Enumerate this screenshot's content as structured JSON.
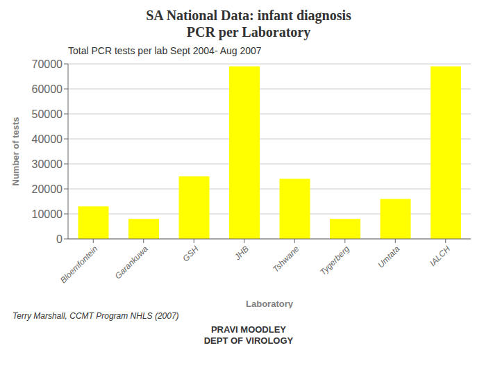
{
  "chart_data": {
    "type": "bar",
    "title": "SA National Data: infant diagnosis\nPCR per Laboratory",
    "subtitle": "Total PCR tests per lab Sept 2004- Aug 2007",
    "xlabel": "Laboratory",
    "ylabel": "Number of tests",
    "categories": [
      "Bloemfontein",
      "Garankuwa",
      "GSH",
      "JHB",
      "Tshwane",
      "Tygerberg",
      "Umtata",
      "IALCH"
    ],
    "values": [
      13000,
      8000,
      25000,
      69000,
      24000,
      8000,
      16000,
      69000
    ],
    "color": "#FFFF00",
    "ylim": [
      0,
      70000
    ],
    "yticks": [
      0,
      10000,
      20000,
      30000,
      40000,
      50000,
      60000,
      70000
    ],
    "grid": true,
    "annotations": [
      "Terry Marshall, CCMT Program NHLS (2007)",
      "PRAVI MOODLEY\nDEPT OF VIROLOGY"
    ]
  }
}
